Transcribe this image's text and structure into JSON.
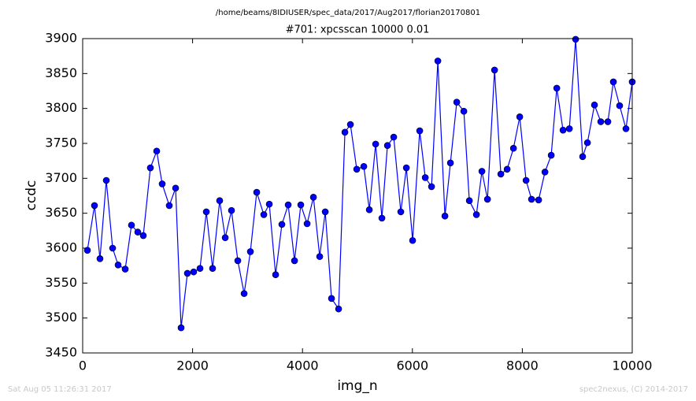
{
  "chart_data": {
    "type": "line",
    "suptitle": "/home/beams/8IDIUSER/spec_data/2017/Aug2017/florian20170801",
    "title": "#701: xpcsscan 10000 0.01",
    "xlabel": "img_n",
    "ylabel": "ccdc",
    "footer_left": "Sat Aug 05 11:26:31 2017",
    "footer_right": "spec2nexus, (C) 2014-2017",
    "xlim": [
      0,
      10000
    ],
    "xticks": [
      0,
      2000,
      4000,
      6000,
      8000,
      10000
    ],
    "ylim": [
      3450,
      3900
    ],
    "yticks": [
      3450,
      3500,
      3550,
      3600,
      3650,
      3700,
      3750,
      3800,
      3850,
      3900
    ],
    "color": "#0000ff",
    "x": [
      86,
      215,
      315,
      430,
      545,
      645,
      774,
      888,
      1003,
      1103,
      1232,
      1347,
      1447,
      1576,
      1691,
      1791,
      1906,
      2020,
      2135,
      2250,
      2364,
      2493,
      2594,
      2708,
      2823,
      2938,
      3052,
      3167,
      3296,
      3396,
      3511,
      3625,
      3740,
      3855,
      3969,
      4084,
      4199,
      4313,
      4414,
      4528,
      4657,
      4772,
      4872,
      4987,
      5116,
      5216,
      5331,
      5445,
      5546,
      5660,
      5789,
      5890,
      6004,
      6133,
      6234,
      6348,
      6463,
      6592,
      6692,
      6807,
      6936,
      7036,
      7165,
      7265,
      7366,
      7495,
      7609,
      7724,
      7839,
      7953,
      8068,
      8168,
      8297,
      8412,
      8526,
      8627,
      8741,
      8856,
      8970,
      9098,
      9185,
      9313,
      9428,
      9557,
      9657,
      9771,
      9886,
      10000
    ],
    "values": [
      3597,
      3661,
      3585,
      3697,
      3600,
      3576,
      3570,
      3633,
      3623,
      3618,
      3715,
      3739,
      3692,
      3661,
      3686,
      3486,
      3564,
      3566,
      3571,
      3652,
      3571,
      3668,
      3615,
      3654,
      3582,
      3535,
      3595,
      3680,
      3648,
      3663,
      3562,
      3634,
      3662,
      3582,
      3662,
      3635,
      3673,
      3588,
      3652,
      3528,
      3513,
      3766,
      3777,
      3713,
      3717,
      3655,
      3749,
      3643,
      3747,
      3759,
      3652,
      3715,
      3611,
      3768,
      3701,
      3688,
      3868,
      3646,
      3722,
      3809,
      3796,
      3668,
      3648,
      3710,
      3670,
      3855,
      3706,
      3713,
      3743,
      3788,
      3697,
      3670,
      3669,
      3709,
      3733,
      3829,
      3769,
      3771,
      3899,
      3731,
      3751,
      3805,
      3781,
      3781,
      3838,
      3804,
      3771,
      3838
    ]
  }
}
